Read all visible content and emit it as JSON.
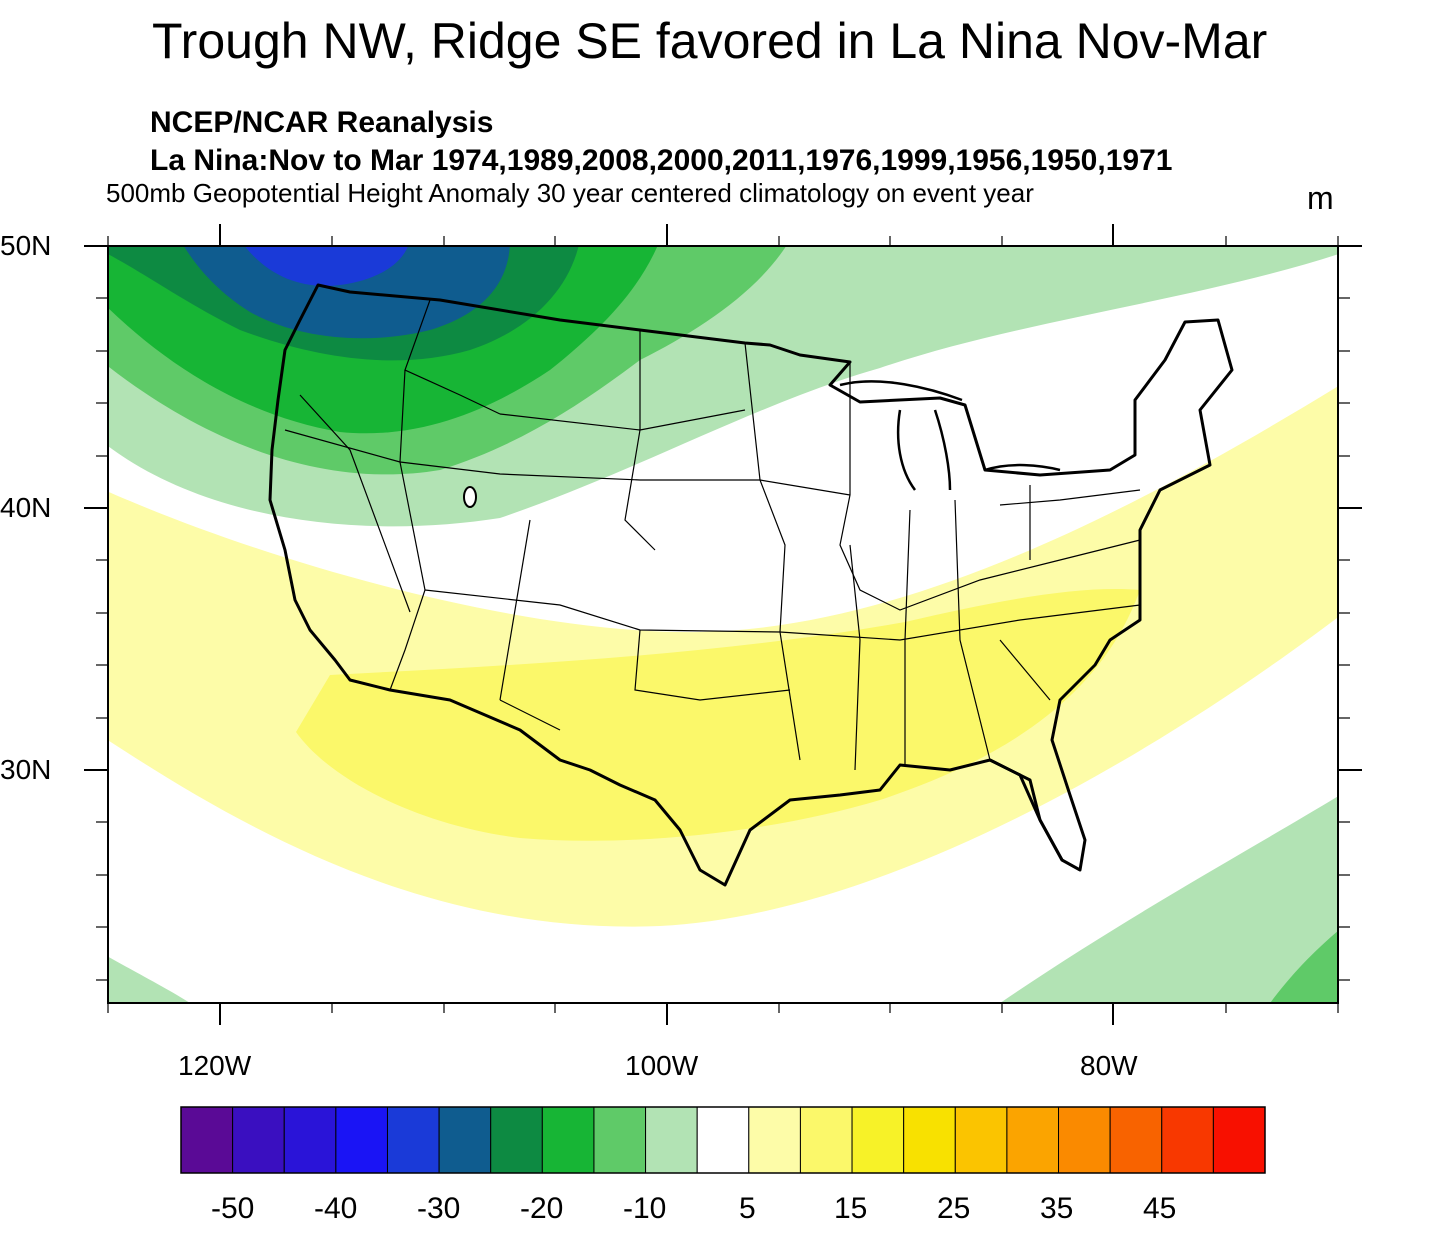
{
  "map": {
    "title": "Trough NW, Ridge SE favored in La Nina Nov-Mar",
    "subtitle_1": "NCEP/NCAR Reanalysis",
    "subtitle_2": "La Nina:Nov to Mar 1974,1989,2008,2000,2011,1976,1999,1956,1950,1971",
    "subtitle_3": "500mb Geopotential Height Anomaly 30 year centered climatology on event year",
    "units": "m",
    "lat_labels": [
      "50N",
      "40N",
      "30N"
    ],
    "lon_labels": [
      "120W",
      "100W",
      "80W"
    ],
    "extent": {
      "lon_min": -125,
      "lon_max": -70,
      "lat_min": 21,
      "lat_max": 50
    }
  },
  "colorbar": {
    "labels": [
      "-50",
      "-40",
      "-30",
      "-20",
      "-10",
      "5",
      "15",
      "25",
      "35",
      "45"
    ],
    "colors": [
      "#5a0a96",
      "#3a0fc0",
      "#2a14d8",
      "#1a14f5",
      "#1a3ad8",
      "#0f5c8f",
      "#0d8a42",
      "#17b535",
      "#5fca68",
      "#b2e3b4",
      "#ffffff",
      "#fdfca8",
      "#fbf86a",
      "#f7f228",
      "#f8e100",
      "#fbc400",
      "#fba400",
      "#fa8a00",
      "#f86300",
      "#f83800",
      "#f81000"
    ]
  },
  "features": {
    "trough": {
      "label": "Trough NW",
      "center_lon": -117.5,
      "center_lat": 50,
      "min_level": -30
    },
    "ridge": {
      "label": "Ridge SE",
      "center_lon": -90,
      "center_lat": 33.5,
      "max_level": 15
    }
  }
}
